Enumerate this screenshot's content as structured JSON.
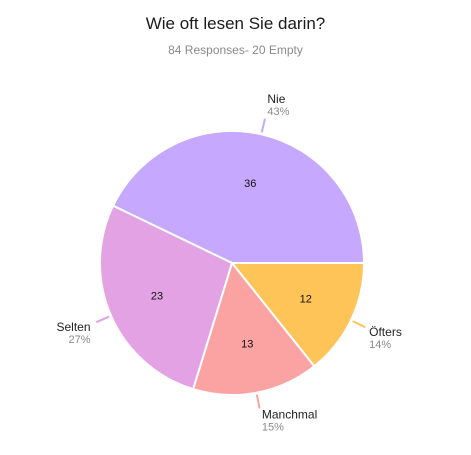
{
  "chart_data": {
    "type": "pie",
    "title": "Wie oft lesen Sie darin?",
    "subtitle": "84 Responses- 20 Empty",
    "slices": [
      {
        "label": "Nie",
        "value": 36,
        "percent": "43%",
        "color": "#c6a8ff"
      },
      {
        "label": "Öfters",
        "value": 12,
        "percent": "14%",
        "color": "#ffc457"
      },
      {
        "label": "Manchmal",
        "value": 13,
        "percent": "15%",
        "color": "#fba3a3"
      },
      {
        "label": "Selten",
        "value": 23,
        "percent": "27%",
        "color": "#e3a2e3"
      }
    ]
  }
}
